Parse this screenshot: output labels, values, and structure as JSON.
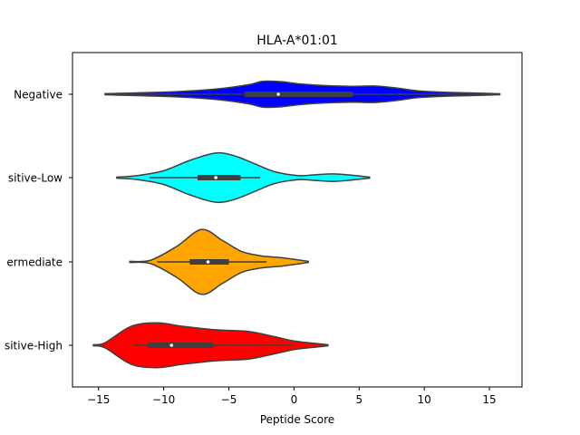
{
  "chart_data": {
    "type": "violin",
    "title": "HLA-A*01:01",
    "xlabel": "Peptide Score",
    "ylabel": "",
    "xlim": [
      -17,
      17.5
    ],
    "xticks": [
      -15,
      -10,
      -5,
      0,
      5,
      10,
      15
    ],
    "xtick_labels": [
      "−15",
      "−10",
      "−5",
      "0",
      "5",
      "10",
      "15"
    ],
    "grid": false,
    "categories": [
      "Negative",
      "Positive-Low",
      "Intermediate",
      "Positive-High"
    ],
    "tick_labels": [
      "Negative",
      "sitive-Low",
      "ermediate",
      "sitive-High"
    ],
    "series": [
      {
        "color": "#0000ff",
        "min": -14.5,
        "q1": -3.8,
        "median": -1.2,
        "q3": 4.5,
        "max": 15.8,
        "whisker_low": -14.5,
        "whisker_high": 15.8,
        "density": [
          [
            -14.5,
            0.3
          ],
          [
            -12,
            0.8
          ],
          [
            -9,
            1.5
          ],
          [
            -6,
            3.0
          ],
          [
            -3.5,
            5.5
          ],
          [
            -2.4,
            7.5
          ],
          [
            -1,
            7.3
          ],
          [
            0.5,
            6.0
          ],
          [
            2.5,
            5.0
          ],
          [
            4.5,
            4.6
          ],
          [
            6.2,
            4.8
          ],
          [
            7.8,
            3.7
          ],
          [
            9.5,
            2.0
          ],
          [
            11.5,
            1.2
          ],
          [
            13.5,
            0.8
          ],
          [
            15.8,
            0.3
          ]
        ]
      },
      {
        "color": "#00ffff",
        "min": -13.6,
        "q1": -7.4,
        "median": -6.0,
        "q3": -4.1,
        "max": 5.8,
        "whisker_low": -11.1,
        "whisker_high": -2.6,
        "density": [
          [
            -13.6,
            0.3
          ],
          [
            -12,
            1.2
          ],
          [
            -10,
            4.0
          ],
          [
            -8,
            10.0
          ],
          [
            -6,
            14.3
          ],
          [
            -4.5,
            12.5
          ],
          [
            -3,
            8.0
          ],
          [
            -1.5,
            3.5
          ],
          [
            0.3,
            1.2
          ],
          [
            1.5,
            1.6
          ],
          [
            3,
            2.2
          ],
          [
            4.3,
            1.5
          ],
          [
            5.8,
            0.3
          ]
        ]
      },
      {
        "color": "#ffa500",
        "min": -12.6,
        "q1": -8.0,
        "median": -6.6,
        "q3": -5.0,
        "max": 1.1,
        "whisker_low": -10.5,
        "whisker_high": -2.1,
        "density": [
          [
            -12.6,
            0.3
          ],
          [
            -11,
            1.0
          ],
          [
            -9,
            9.0
          ],
          [
            -7.1,
            18.8
          ],
          [
            -5.5,
            12.5
          ],
          [
            -4,
            6.0
          ],
          [
            -2.5,
            3.5
          ],
          [
            -1,
            2.5
          ],
          [
            0,
            1.5
          ],
          [
            1.1,
            0.3
          ]
        ]
      },
      {
        "color": "#ff0000",
        "min": -15.4,
        "q1": -11.2,
        "median": -9.4,
        "q3": -6.2,
        "max": 2.6,
        "whisker_low": -12.3,
        "whisker_high": 0.0,
        "density": [
          [
            -15.4,
            0.3
          ],
          [
            -14.5,
            1.5
          ],
          [
            -12.5,
            11.0
          ],
          [
            -10.5,
            13.0
          ],
          [
            -8.5,
            11.0
          ],
          [
            -6,
            9.0
          ],
          [
            -3.5,
            8.0
          ],
          [
            -1.5,
            5.0
          ],
          [
            0,
            2.5
          ],
          [
            1.5,
            1.2
          ],
          [
            2.6,
            0.3
          ]
        ]
      }
    ]
  }
}
